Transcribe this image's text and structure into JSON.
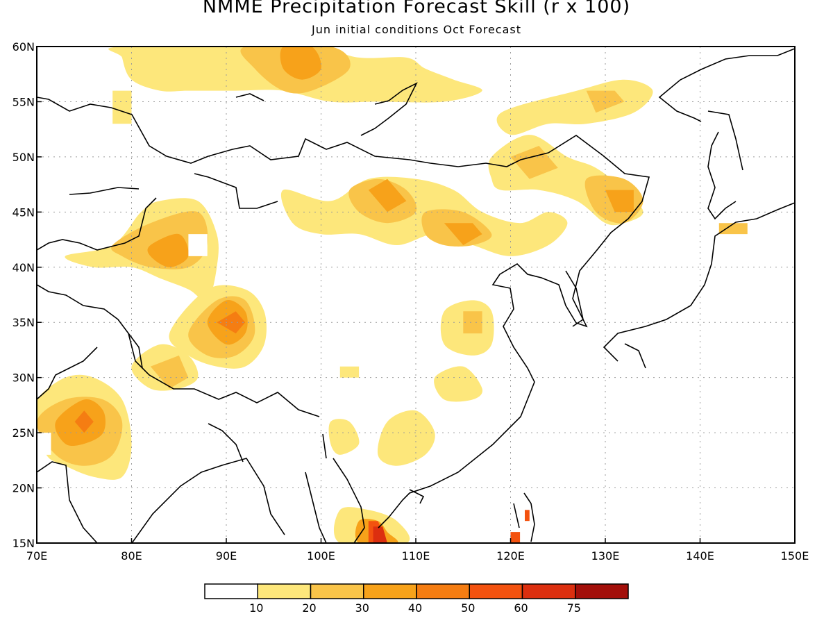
{
  "title": "NMME Precipitation Forecast Skill (r x 100)",
  "subtitle": "Jun initial conditions  Oct Forecast",
  "map": {
    "lon_range": [
      70,
      150
    ],
    "lat_range": [
      15,
      60
    ],
    "lon_ticks": [
      "70E",
      "80E",
      "90E",
      "100E",
      "110E",
      "120E",
      "130E",
      "140E",
      "150E"
    ],
    "lat_ticks": [
      "15N",
      "20N",
      "25N",
      "30N",
      "35N",
      "40N",
      "45N",
      "50N",
      "55N",
      "60N"
    ],
    "grid": true,
    "shaded_regions": [
      {
        "name": "siberia-north-band",
        "level": 10,
        "points": [
          [
            79,
            60
          ],
          [
            98,
            60
          ],
          [
            104,
            59
          ],
          [
            109,
            59
          ],
          [
            111,
            58
          ],
          [
            114,
            57
          ],
          [
            117,
            56
          ],
          [
            113,
            55
          ],
          [
            106,
            55
          ],
          [
            101,
            55
          ],
          [
            96,
            56
          ],
          [
            91,
            56
          ],
          [
            86,
            56
          ],
          [
            83,
            56
          ],
          [
            80,
            57
          ],
          [
            79,
            59
          ]
        ]
      },
      {
        "name": "siberia-north-mid",
        "level": 20,
        "points": [
          [
            92,
            60
          ],
          [
            101,
            60
          ],
          [
            103,
            58
          ],
          [
            99,
            56
          ],
          [
            96,
            56
          ],
          [
            93,
            58
          ]
        ]
      },
      {
        "name": "north-core",
        "level": 30,
        "points": [
          [
            96,
            60
          ],
          [
            99,
            60
          ],
          [
            100,
            58
          ],
          [
            98,
            57
          ],
          [
            96,
            58
          ]
        ]
      },
      {
        "name": "west-siberia-spot",
        "level": 10,
        "points": [
          [
            78,
            56
          ],
          [
            80,
            56
          ],
          [
            80,
            53
          ],
          [
            78,
            53
          ]
        ]
      },
      {
        "name": "far-east-north",
        "level": 10,
        "points": [
          [
            119,
            54
          ],
          [
            127,
            56
          ],
          [
            132,
            57
          ],
          [
            135,
            56
          ],
          [
            133,
            54
          ],
          [
            128,
            53
          ],
          [
            124,
            53
          ],
          [
            120,
            52
          ]
        ]
      },
      {
        "name": "far-east-north-mid",
        "level": 20,
        "points": [
          [
            128,
            56
          ],
          [
            131,
            56
          ],
          [
            132,
            55
          ],
          [
            129,
            54
          ]
        ]
      },
      {
        "name": "dzungaria-west-band",
        "level": 10,
        "points": [
          [
            73,
            41
          ],
          [
            78,
            42
          ],
          [
            81,
            45
          ],
          [
            83,
            46
          ],
          [
            87,
            46
          ],
          [
            89,
            43
          ],
          [
            89,
            40
          ],
          [
            88,
            37
          ],
          [
            86,
            38
          ],
          [
            83,
            39
          ],
          [
            80,
            40
          ],
          [
            76,
            40
          ]
        ]
      },
      {
        "name": "dzungaria-mid",
        "level": 20,
        "points": [
          [
            78,
            42
          ],
          [
            82,
            44
          ],
          [
            87,
            45
          ],
          [
            88,
            42
          ],
          [
            86,
            40
          ],
          [
            82,
            40
          ],
          [
            79,
            41
          ]
        ]
      },
      {
        "name": "dzungaria-core",
        "level": 30,
        "points": [
          [
            82,
            42
          ],
          [
            85,
            43
          ],
          [
            86,
            41
          ],
          [
            84,
            40
          ],
          [
            82,
            41
          ]
        ]
      },
      {
        "name": "mongolia-band",
        "level": 10,
        "points": [
          [
            96,
            47
          ],
          [
            101,
            46
          ],
          [
            105,
            48
          ],
          [
            110,
            48
          ],
          [
            114,
            47
          ],
          [
            117,
            45
          ],
          [
            121,
            44
          ],
          [
            124,
            45
          ],
          [
            126,
            44
          ],
          [
            124,
            42
          ],
          [
            120,
            41
          ],
          [
            116,
            42
          ],
          [
            112,
            43
          ],
          [
            108,
            42
          ],
          [
            104,
            43
          ],
          [
            100,
            43
          ],
          [
            97,
            44
          ]
        ]
      },
      {
        "name": "mongolia-mid",
        "level": 20,
        "points": [
          [
            103,
            47
          ],
          [
            106,
            48
          ],
          [
            109,
            47
          ],
          [
            110,
            45
          ],
          [
            107,
            44
          ],
          [
            104,
            45
          ]
        ]
      },
      {
        "name": "mongolia-core",
        "level": 30,
        "points": [
          [
            105,
            47
          ],
          [
            107,
            48
          ],
          [
            109,
            46
          ],
          [
            107,
            45
          ]
        ]
      },
      {
        "name": "inner-mongolia-mid",
        "level": 20,
        "points": [
          [
            111,
            45
          ],
          [
            115,
            45
          ],
          [
            118,
            43
          ],
          [
            116,
            42
          ],
          [
            113,
            42
          ],
          [
            111,
            43
          ]
        ]
      },
      {
        "name": "inner-mongolia-core",
        "level": 30,
        "points": [
          [
            113,
            44
          ],
          [
            116,
            44
          ],
          [
            117,
            43
          ],
          [
            115,
            42
          ]
        ]
      },
      {
        "name": "manchuria-band",
        "level": 10,
        "points": [
          [
            118,
            50
          ],
          [
            122,
            52
          ],
          [
            126,
            50
          ],
          [
            129,
            49
          ],
          [
            132,
            47
          ],
          [
            134,
            45
          ],
          [
            132,
            44
          ],
          [
            130,
            44
          ],
          [
            127,
            46
          ],
          [
            123,
            47
          ],
          [
            119,
            47
          ],
          [
            118,
            48
          ]
        ]
      },
      {
        "name": "manchuria-mid",
        "level": 20,
        "points": [
          [
            120,
            50
          ],
          [
            123,
            51
          ],
          [
            125,
            49
          ],
          [
            122,
            48
          ]
        ]
      },
      {
        "name": "manchuria-east-mid",
        "level": 20,
        "points": [
          [
            128,
            48
          ],
          [
            132,
            48
          ],
          [
            134,
            46
          ],
          [
            132,
            44
          ],
          [
            129,
            45
          ]
        ]
      },
      {
        "name": "manchuria-east-core",
        "level": 30,
        "points": [
          [
            130,
            47
          ],
          [
            133,
            47
          ],
          [
            133,
            45
          ],
          [
            131,
            45
          ]
        ]
      },
      {
        "name": "hokkaido",
        "level": 20,
        "points": [
          [
            142,
            44
          ],
          [
            145,
            44
          ],
          [
            145,
            43
          ],
          [
            142,
            43
          ]
        ]
      },
      {
        "name": "tibet-band",
        "level": 10,
        "points": [
          [
            84,
            34
          ],
          [
            88,
            38
          ],
          [
            92,
            38
          ],
          [
            94,
            36
          ],
          [
            94,
            33
          ],
          [
            92,
            31
          ],
          [
            89,
            31
          ],
          [
            86,
            32
          ]
        ]
      },
      {
        "name": "tibet-mid",
        "level": 20,
        "points": [
          [
            86,
            34
          ],
          [
            89,
            37
          ],
          [
            92,
            37
          ],
          [
            93,
            34
          ],
          [
            91,
            32
          ],
          [
            88,
            32
          ]
        ]
      },
      {
        "name": "tibet-core",
        "level": 30,
        "points": [
          [
            88,
            35
          ],
          [
            90,
            37
          ],
          [
            92,
            36
          ],
          [
            92,
            34
          ],
          [
            90,
            33
          ]
        ]
      },
      {
        "name": "tibet-hot",
        "level": 40,
        "points": [
          [
            89,
            35
          ],
          [
            91,
            36
          ],
          [
            92,
            35
          ],
          [
            91,
            34
          ]
        ]
      },
      {
        "name": "himalaya-band",
        "level": 10,
        "points": [
          [
            80,
            31
          ],
          [
            83,
            33
          ],
          [
            86,
            32
          ],
          [
            87,
            30
          ],
          [
            85,
            29
          ],
          [
            82,
            29
          ]
        ]
      },
      {
        "name": "himalaya-mid",
        "level": 20,
        "points": [
          [
            82,
            31
          ],
          [
            85,
            32
          ],
          [
            86,
            30
          ],
          [
            84,
            29
          ]
        ]
      },
      {
        "name": "pakistan-band",
        "level": 10,
        "points": [
          [
            70,
            28
          ],
          [
            73,
            30
          ],
          [
            76,
            30
          ],
          [
            79,
            28
          ],
          [
            80,
            24
          ],
          [
            79,
            21
          ],
          [
            76,
            21
          ],
          [
            73,
            22
          ],
          [
            71,
            23
          ],
          [
            70,
            26
          ]
        ]
      },
      {
        "name": "pakistan-mid",
        "level": 20,
        "points": [
          [
            70,
            26
          ],
          [
            73,
            28
          ],
          [
            77,
            28
          ],
          [
            79,
            26
          ],
          [
            78,
            23
          ],
          [
            75,
            22
          ],
          [
            72,
            23
          ]
        ]
      },
      {
        "name": "pakistan-core",
        "level": 30,
        "points": [
          [
            72,
            26
          ],
          [
            75,
            28
          ],
          [
            77,
            27
          ],
          [
            77,
            25
          ],
          [
            75,
            24
          ],
          [
            73,
            24
          ]
        ]
      },
      {
        "name": "pakistan-hot",
        "level": 40,
        "points": [
          [
            74,
            26
          ],
          [
            75,
            27
          ],
          [
            76,
            26
          ],
          [
            75,
            25
          ]
        ]
      },
      {
        "name": "central-china-spot",
        "level": 10,
        "points": [
          [
            102,
            31
          ],
          [
            104,
            31
          ],
          [
            104,
            30
          ],
          [
            102,
            30
          ]
        ]
      },
      {
        "name": "yunnan-band",
        "level": 10,
        "points": [
          [
            101,
            26
          ],
          [
            103,
            26
          ],
          [
            104,
            24
          ],
          [
            102,
            23
          ],
          [
            101,
            24
          ]
        ]
      },
      {
        "name": "south-china-band",
        "level": 10,
        "points": [
          [
            107,
            26
          ],
          [
            110,
            27
          ],
          [
            112,
            25
          ],
          [
            111,
            23
          ],
          [
            108,
            22
          ],
          [
            106,
            23
          ]
        ]
      },
      {
        "name": "east-china-band",
        "level": 10,
        "points": [
          [
            113,
            36
          ],
          [
            116,
            37
          ],
          [
            118,
            36
          ],
          [
            118,
            33
          ],
          [
            116,
            32
          ],
          [
            113,
            33
          ]
        ]
      },
      {
        "name": "east-china-mid",
        "level": 20,
        "points": [
          [
            115,
            36
          ],
          [
            117,
            36
          ],
          [
            117,
            34
          ],
          [
            115,
            34
          ]
        ]
      },
      {
        "name": "jiangnan-band",
        "level": 10,
        "points": [
          [
            112,
            30
          ],
          [
            115,
            31
          ],
          [
            117,
            29
          ],
          [
            116,
            28
          ],
          [
            113,
            28
          ]
        ]
      },
      {
        "name": "mekong-band",
        "level": 10,
        "points": [
          [
            102,
            18
          ],
          [
            105,
            18
          ],
          [
            108,
            17
          ],
          [
            109,
            15
          ],
          [
            102,
            15
          ]
        ]
      },
      {
        "name": "mekong-mid",
        "level": 30,
        "points": [
          [
            104,
            17
          ],
          [
            106,
            17
          ],
          [
            107,
            16
          ],
          [
            108,
            15
          ],
          [
            104,
            15
          ]
        ]
      },
      {
        "name": "mekong-hot",
        "level": 50,
        "points": [
          [
            105,
            17
          ],
          [
            106,
            17
          ],
          [
            107,
            15
          ],
          [
            105,
            15
          ]
        ]
      },
      {
        "name": "mekong-core",
        "level": 60,
        "points": [
          [
            105.5,
            16.5
          ],
          [
            106.5,
            16.5
          ],
          [
            107,
            15
          ],
          [
            105.5,
            15
          ]
        ]
      },
      {
        "name": "luzon-north",
        "level": 50,
        "points": [
          [
            121.5,
            18
          ],
          [
            122,
            18
          ],
          [
            122,
            17
          ],
          [
            121.5,
            17
          ]
        ]
      },
      {
        "name": "luzon-south",
        "level": 50,
        "points": [
          [
            120,
            16
          ],
          [
            121,
            16
          ],
          [
            121,
            15
          ],
          [
            120,
            15
          ]
        ]
      }
    ],
    "missing_cells": [
      {
        "name": "missing-cell-tibet",
        "points": [
          [
            86,
            43
          ],
          [
            88,
            43
          ],
          [
            88,
            41
          ],
          [
            86,
            41
          ]
        ]
      },
      {
        "name": "missing-cell-west",
        "points": [
          [
            70,
            25
          ],
          [
            71.5,
            25
          ],
          [
            71.5,
            23
          ],
          [
            70,
            23
          ]
        ]
      }
    ]
  },
  "colorbar": {
    "levels": [
      "10",
      "20",
      "30",
      "40",
      "50",
      "60",
      "75"
    ],
    "colors": [
      "#ffffff",
      "#fde77b",
      "#f9c449",
      "#f7a21a",
      "#f57d12",
      "#f3520f",
      "#dc2f0f",
      "#a30f0a"
    ]
  }
}
